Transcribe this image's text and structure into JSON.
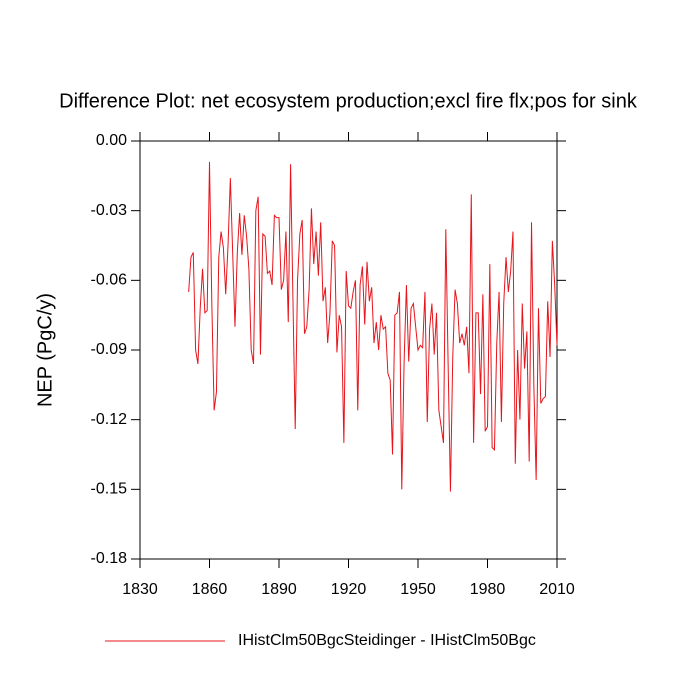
{
  "chart_data": {
    "type": "line",
    "title": "Difference Plot: net ecosystem production;excl fire flx;pos for sink",
    "y_label": "NEP  (PgC/y)",
    "x": [
      1851,
      1852,
      1853,
      1854,
      1855,
      1856,
      1857,
      1858,
      1859,
      1860,
      1861,
      1862,
      1863,
      1864,
      1865,
      1866,
      1867,
      1868,
      1869,
      1870,
      1871,
      1872,
      1873,
      1874,
      1875,
      1876,
      1877,
      1878,
      1879,
      1880,
      1881,
      1882,
      1883,
      1884,
      1885,
      1886,
      1887,
      1888,
      1889,
      1890,
      1891,
      1892,
      1893,
      1894,
      1895,
      1896,
      1897,
      1898,
      1899,
      1900,
      1901,
      1902,
      1903,
      1904,
      1905,
      1906,
      1907,
      1908,
      1909,
      1910,
      1911,
      1912,
      1913,
      1914,
      1915,
      1916,
      1917,
      1918,
      1919,
      1920,
      1921,
      1922,
      1923,
      1924,
      1925,
      1926,
      1927,
      1928,
      1929,
      1930,
      1931,
      1932,
      1933,
      1934,
      1935,
      1936,
      1937,
      1938,
      1939,
      1940,
      1941,
      1942,
      1943,
      1944,
      1945,
      1946,
      1947,
      1948,
      1949,
      1950,
      1951,
      1952,
      1953,
      1954,
      1955,
      1956,
      1957,
      1958,
      1959,
      1960,
      1961,
      1962,
      1963,
      1964,
      1965,
      1966,
      1967,
      1968,
      1969,
      1970,
      1971,
      1972,
      1973,
      1974,
      1975,
      1976,
      1977,
      1978,
      1979,
      1980,
      1981,
      1982,
      1983,
      1984,
      1985,
      1986,
      1987,
      1988,
      1989,
      1990,
      1991,
      1992,
      1993,
      1994,
      1995,
      1996,
      1997,
      1998,
      1999,
      2000,
      2001,
      2002,
      2003,
      2004,
      2005,
      2006,
      2007,
      2008,
      2009,
      2010
    ],
    "series": [
      {
        "name": "IHistClm50BgcSteidinger - IHistClm50Bgc",
        "color": "#e8141b",
        "values": [
          -0.065,
          -0.05,
          -0.048,
          -0.09,
          -0.096,
          -0.072,
          -0.055,
          -0.074,
          -0.073,
          -0.009,
          -0.07,
          -0.116,
          -0.108,
          -0.05,
          -0.039,
          -0.046,
          -0.066,
          -0.045,
          -0.016,
          -0.048,
          -0.08,
          -0.048,
          -0.031,
          -0.049,
          -0.032,
          -0.041,
          -0.055,
          -0.09,
          -0.096,
          -0.03,
          -0.024,
          -0.092,
          -0.04,
          -0.041,
          -0.057,
          -0.056,
          -0.062,
          -0.032,
          -0.033,
          -0.033,
          -0.064,
          -0.06,
          -0.039,
          -0.078,
          -0.01,
          -0.067,
          -0.124,
          -0.06,
          -0.04,
          -0.034,
          -0.083,
          -0.08,
          -0.064,
          -0.029,
          -0.053,
          -0.039,
          -0.058,
          -0.035,
          -0.069,
          -0.063,
          -0.087,
          -0.074,
          -0.043,
          -0.045,
          -0.091,
          -0.075,
          -0.08,
          -0.13,
          -0.056,
          -0.071,
          -0.072,
          -0.065,
          -0.06,
          -0.116,
          -0.062,
          -0.054,
          -0.079,
          -0.052,
          -0.069,
          -0.063,
          -0.087,
          -0.078,
          -0.09,
          -0.075,
          -0.081,
          -0.08,
          -0.1,
          -0.103,
          -0.135,
          -0.075,
          -0.074,
          -0.065,
          -0.15,
          -0.095,
          -0.062,
          -0.095,
          -0.072,
          -0.07,
          -0.08,
          -0.09,
          -0.088,
          -0.089,
          -0.065,
          -0.121,
          -0.081,
          -0.07,
          -0.092,
          -0.074,
          -0.116,
          -0.123,
          -0.13,
          -0.038,
          -0.096,
          -0.151,
          -0.093,
          -0.064,
          -0.07,
          -0.087,
          -0.083,
          -0.088,
          -0.08,
          -0.1,
          -0.023,
          -0.13,
          -0.074,
          -0.074,
          -0.109,
          -0.066,
          -0.125,
          -0.123,
          -0.053,
          -0.132,
          -0.133,
          -0.087,
          -0.065,
          -0.121,
          -0.07,
          -0.05,
          -0.065,
          -0.056,
          -0.039,
          -0.139,
          -0.09,
          -0.12,
          -0.07,
          -0.098,
          -0.082,
          -0.138,
          -0.035,
          -0.105,
          -0.146,
          -0.072,
          -0.113,
          -0.111,
          -0.11,
          -0.069,
          -0.093,
          -0.043,
          -0.062,
          -0.088
        ]
      }
    ],
    "xlim": [
      1830,
      2010
    ],
    "xticks": [
      1830,
      1860,
      1890,
      1920,
      1950,
      1980,
      2010
    ],
    "ylim": [
      -0.18,
      0
    ],
    "yticks": [
      {
        "value": 0,
        "label": "0.00"
      },
      {
        "value": -0.03,
        "label": "-0.03"
      },
      {
        "value": -0.06,
        "label": "-0.06"
      },
      {
        "value": -0.09,
        "label": "-0.09"
      },
      {
        "value": -0.12,
        "label": "-0.12"
      },
      {
        "value": -0.15,
        "label": "-0.15"
      },
      {
        "value": -0.18,
        "label": "-0.18"
      }
    ],
    "grid": false,
    "legend": "bottom"
  }
}
